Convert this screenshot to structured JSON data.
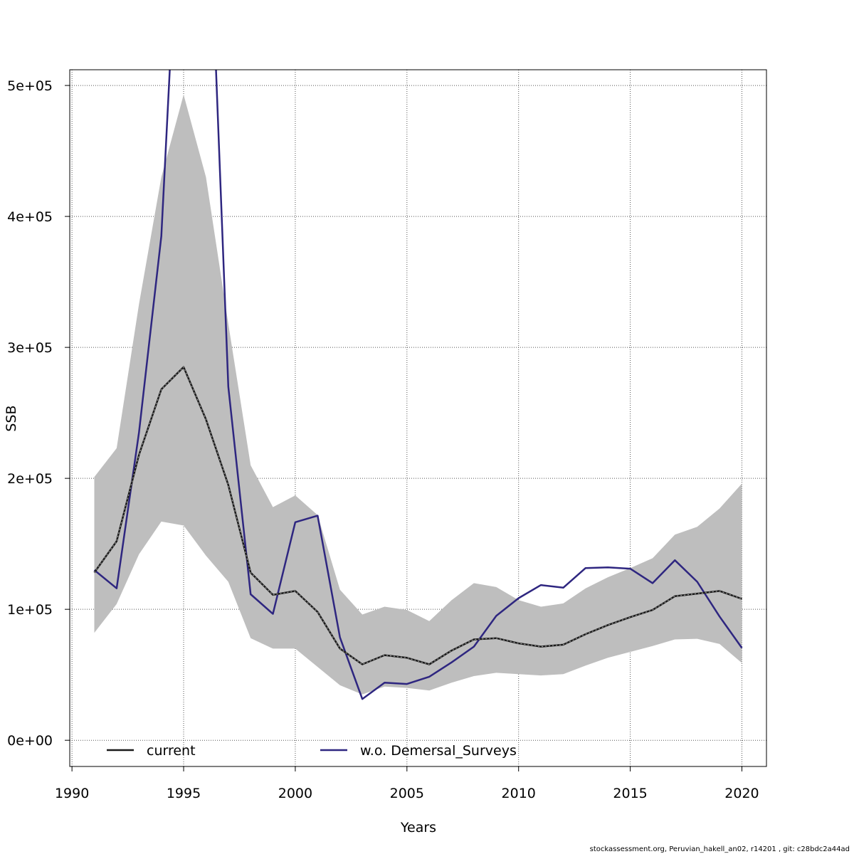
{
  "chart_data": {
    "type": "line",
    "xlabel": "Years",
    "ylabel": "SSB",
    "xlim": [
      1989.9,
      2021.1
    ],
    "ylim": [
      -20000,
      512000
    ],
    "x_ticks": [
      1990,
      1995,
      2000,
      2005,
      2010,
      2015,
      2020
    ],
    "x_tick_labels": [
      "1990",
      "1995",
      "2000",
      "2005",
      "2010",
      "2015",
      "2020"
    ],
    "y_ticks": [
      0,
      100000,
      200000,
      300000,
      400000,
      500000
    ],
    "y_tick_labels": [
      "0e+00",
      "1e+05",
      "2e+05",
      "3e+05",
      "4e+05",
      "5e+05"
    ],
    "grid": true,
    "legend_position": "bottom",
    "x": [
      1991,
      1992,
      1993,
      1994,
      1995,
      1996,
      1997,
      1998,
      1999,
      2000,
      2001,
      2002,
      2003,
      2004,
      2005,
      2006,
      2007,
      2008,
      2009,
      2010,
      2011,
      2012,
      2013,
      2014,
      2015,
      2016,
      2017,
      2018,
      2019,
      2020
    ],
    "band": {
      "upper": [
        201000,
        223000,
        333000,
        430000,
        493000,
        430000,
        318000,
        210000,
        178000,
        187000,
        172000,
        115000,
        96000,
        102000,
        99500,
        91000,
        107000,
        120000,
        117000,
        107000,
        102000,
        104500,
        116000,
        124500,
        131500,
        139000,
        157000,
        163000,
        177000,
        196000
      ],
      "lower": [
        82000,
        104000,
        142000,
        167000,
        164000,
        141000,
        121000,
        78000,
        70000,
        70000,
        56000,
        42000,
        35000,
        41000,
        40000,
        38000,
        44000,
        49000,
        51500,
        50500,
        49500,
        50500,
        57000,
        63000,
        67500,
        72000,
        77000,
        77500,
        73500,
        59000
      ],
      "color": "#bebebe"
    },
    "series": [
      {
        "name": "current",
        "color": "#1a1a1a",
        "style": "dotted-over-solid",
        "values": [
          128000,
          152000,
          218000,
          268000,
          285000,
          245000,
          195000,
          128000,
          111000,
          114000,
          98000,
          70000,
          58000,
          65000,
          63000,
          58000,
          68500,
          77000,
          78000,
          74000,
          71500,
          73000,
          81000,
          88000,
          94000,
          99500,
          110000,
          112000,
          114000,
          108000
        ]
      },
      {
        "name": "w.o. Demersal_Surveys",
        "color": "#2e2680",
        "style": "solid",
        "values": [
          130000,
          116000,
          235000,
          385000,
          720000,
          710000,
          270000,
          111500,
          96500,
          166500,
          171500,
          78500,
          31500,
          44000,
          43000,
          48500,
          59500,
          71500,
          95000,
          108500,
          118500,
          116500,
          131500,
          132000,
          131000,
          120000,
          137500,
          121000,
          94500,
          70500
        ]
      }
    ]
  },
  "footer_text": "stockassessment.org, Peruvian_hakell_an02, r14201 , git: c28bdc2a44ad"
}
